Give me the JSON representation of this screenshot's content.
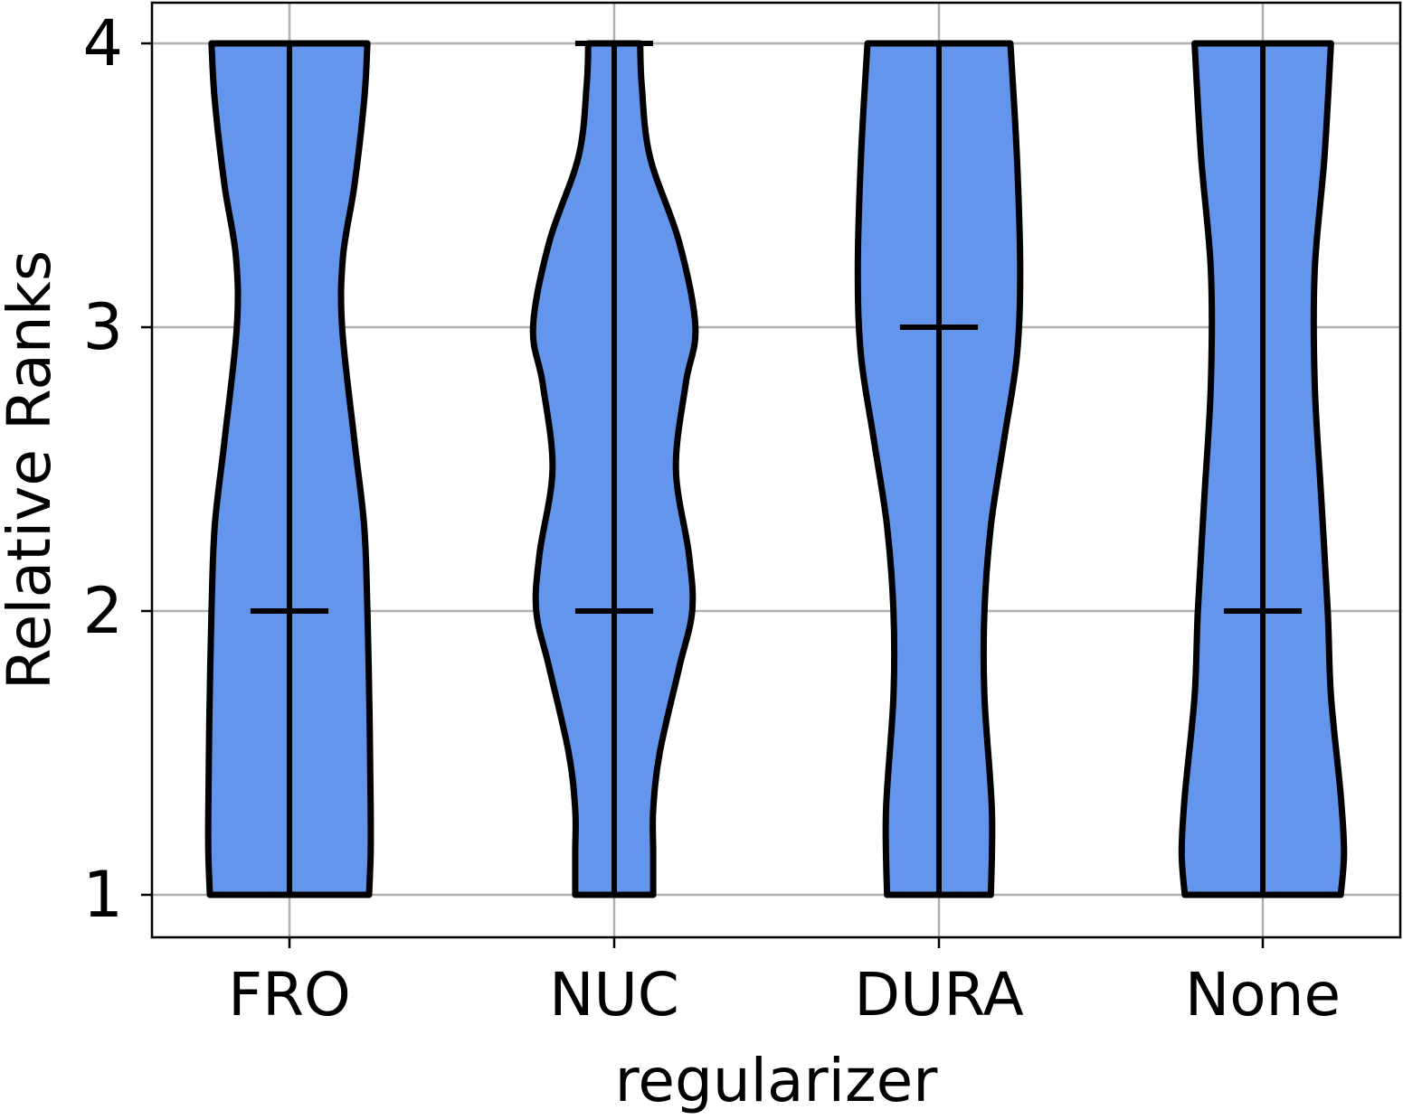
{
  "chart_data": {
    "type": "violin",
    "title": "",
    "xlabel": "regularizer",
    "ylabel": "Relative Ranks",
    "categories": [
      "FRO",
      "NUC",
      "DURA",
      "None"
    ],
    "yticks": [
      1,
      2,
      3,
      4
    ],
    "ylim": [
      0.85,
      4.15
    ],
    "grid": true,
    "colors": {
      "fill": "#6495ED",
      "edge": "#000000",
      "grid": "#b0b0b0"
    },
    "violins": [
      {
        "category": "FRO",
        "min": 1,
        "max": 4,
        "median": 2,
        "density": [
          {
            "y": 1.0,
            "w": 0.245
          },
          {
            "y": 1.15,
            "w": 0.25
          },
          {
            "y": 1.3,
            "w": 0.25
          },
          {
            "y": 1.6,
            "w": 0.247
          },
          {
            "y": 2.0,
            "w": 0.24
          },
          {
            "y": 2.3,
            "w": 0.23
          },
          {
            "y": 2.6,
            "w": 0.2
          },
          {
            "y": 3.0,
            "w": 0.162
          },
          {
            "y": 3.25,
            "w": 0.165
          },
          {
            "y": 3.5,
            "w": 0.2
          },
          {
            "y": 3.8,
            "w": 0.23
          },
          {
            "y": 4.0,
            "w": 0.24
          }
        ]
      },
      {
        "category": "NUC",
        "min": 1,
        "max": 4,
        "median": 2,
        "density": [
          {
            "y": 1.0,
            "w": 0.12
          },
          {
            "y": 1.15,
            "w": 0.12
          },
          {
            "y": 1.3,
            "w": 0.12
          },
          {
            "y": 1.5,
            "w": 0.14
          },
          {
            "y": 1.8,
            "w": 0.2
          },
          {
            "y": 2.0,
            "w": 0.24
          },
          {
            "y": 2.2,
            "w": 0.23
          },
          {
            "y": 2.5,
            "w": 0.19
          },
          {
            "y": 2.8,
            "w": 0.22
          },
          {
            "y": 3.0,
            "w": 0.25
          },
          {
            "y": 3.3,
            "w": 0.2
          },
          {
            "y": 3.6,
            "w": 0.11
          },
          {
            "y": 3.85,
            "w": 0.085
          },
          {
            "y": 4.0,
            "w": 0.08
          }
        ]
      },
      {
        "category": "DURA",
        "min": 1,
        "max": 4,
        "median": 3,
        "density": [
          {
            "y": 1.0,
            "w": 0.16
          },
          {
            "y": 1.3,
            "w": 0.163
          },
          {
            "y": 1.7,
            "w": 0.14
          },
          {
            "y": 2.0,
            "w": 0.14
          },
          {
            "y": 2.3,
            "w": 0.16
          },
          {
            "y": 2.6,
            "w": 0.2
          },
          {
            "y": 2.9,
            "w": 0.24
          },
          {
            "y": 3.2,
            "w": 0.25
          },
          {
            "y": 3.6,
            "w": 0.24
          },
          {
            "y": 4.0,
            "w": 0.22
          }
        ]
      },
      {
        "category": "None",
        "min": 1,
        "max": 4,
        "median": 2,
        "density": [
          {
            "y": 1.0,
            "w": 0.24
          },
          {
            "y": 1.15,
            "w": 0.25
          },
          {
            "y": 1.35,
            "w": 0.24
          },
          {
            "y": 1.7,
            "w": 0.21
          },
          {
            "y": 2.0,
            "w": 0.2
          },
          {
            "y": 2.4,
            "w": 0.18
          },
          {
            "y": 2.8,
            "w": 0.16
          },
          {
            "y": 3.2,
            "w": 0.16
          },
          {
            "y": 3.6,
            "w": 0.19
          },
          {
            "y": 4.0,
            "w": 0.21
          }
        ]
      }
    ]
  }
}
